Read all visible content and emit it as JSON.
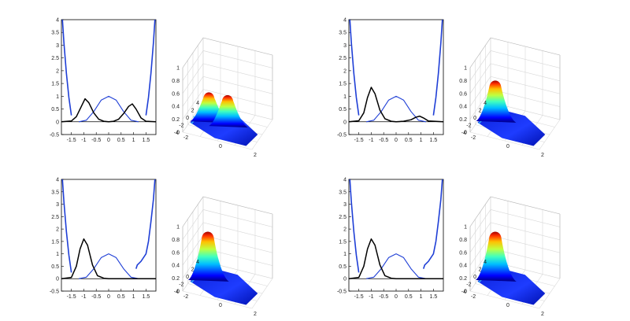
{
  "chart_data": [
    {
      "type": "line",
      "panel": "top-left-curves",
      "xlim": [
        -1.9,
        1.9
      ],
      "ylim": [
        -0.5,
        4
      ],
      "xticks": [
        "-1.5",
        "-1",
        "-0.5",
        "0",
        "0.5",
        "1",
        "1.5"
      ],
      "yticks": [
        "-0.5",
        "0",
        "0.5",
        "1",
        "1.5",
        "2",
        "2.5",
        "3",
        "3.5",
        "4"
      ],
      "series": [
        {
          "color": "#1f3fd6",
          "role": "potential",
          "x": [
            -1.86,
            -1.8,
            -1.7,
            -1.6,
            -1.5,
            1.5,
            1.6,
            1.7,
            1.8,
            1.86
          ],
          "y": [
            4,
            3.1,
            1.9,
            0.95,
            0.25,
            0.25,
            0.95,
            1.9,
            3.1,
            4
          ]
        },
        {
          "color": "#1f3fd6",
          "role": "gaussian",
          "x": [
            -1.2,
            -0.9,
            -0.6,
            -0.3,
            0,
            0.3,
            0.6,
            0.9,
            1.2
          ],
          "y": [
            0,
            0.06,
            0.4,
            0.85,
            1.0,
            0.85,
            0.4,
            0.06,
            0
          ]
        },
        {
          "color": "#000000",
          "role": "state",
          "x": [
            -1.9,
            -1.5,
            -1.3,
            -1.1,
            -0.95,
            -0.8,
            -0.6,
            -0.4,
            -0.2,
            0,
            0.2,
            0.4,
            0.6,
            0.8,
            0.95,
            1.1,
            1.3,
            1.5,
            1.9
          ],
          "y": [
            0,
            0.03,
            0.2,
            0.6,
            0.9,
            0.75,
            0.35,
            0.1,
            0.02,
            0,
            0.02,
            0.1,
            0.32,
            0.6,
            0.7,
            0.5,
            0.15,
            0.02,
            0
          ]
        }
      ]
    },
    {
      "type": "surface",
      "panel": "top-left-surface",
      "zticks": [
        "0",
        "0.2",
        "0.4",
        "0.6",
        "0.8",
        "1"
      ],
      "xticks": [
        "-2",
        "0",
        "2"
      ],
      "yticks": [
        "4",
        "2",
        "0",
        "-2",
        "-4"
      ],
      "peaks": [
        {
          "x": -0.9,
          "y": 0,
          "z": 0.45
        },
        {
          "x": 0.9,
          "y": 0,
          "z": 0.48
        }
      ]
    },
    {
      "type": "line",
      "panel": "top-right-curves",
      "xlim": [
        -1.9,
        1.9
      ],
      "ylim": [
        -0.5,
        4
      ],
      "xticks": [
        "-1.5",
        "-1",
        "-0.5",
        "0",
        "0.5",
        "1",
        "1.5"
      ],
      "yticks": [
        "-0.5",
        "0",
        "0.5",
        "1",
        "1.5",
        "2",
        "2.5",
        "3",
        "3.5",
        "4"
      ],
      "series": [
        {
          "color": "#1f3fd6",
          "role": "potential",
          "x": [
            -1.86,
            -1.8,
            -1.7,
            -1.6,
            -1.5,
            1.5,
            1.6,
            1.7,
            1.8,
            1.86
          ],
          "y": [
            4,
            3.1,
            1.9,
            0.95,
            0.25,
            0.25,
            0.95,
            1.9,
            3.1,
            4
          ]
        },
        {
          "color": "#1f3fd6",
          "role": "gaussian",
          "x": [
            -1.2,
            -0.9,
            -0.6,
            -0.3,
            0,
            0.3,
            0.6,
            0.9,
            1.2
          ],
          "y": [
            0,
            0.06,
            0.4,
            0.85,
            1.0,
            0.85,
            0.4,
            0.06,
            0
          ]
        },
        {
          "color": "#000000",
          "role": "state",
          "x": [
            -1.9,
            -1.5,
            -1.3,
            -1.15,
            -1.0,
            -0.85,
            -0.65,
            -0.45,
            -0.2,
            0,
            0.3,
            0.6,
            0.8,
            0.95,
            1.1,
            1.3,
            1.9
          ],
          "y": [
            0,
            0.04,
            0.35,
            0.95,
            1.35,
            1.1,
            0.45,
            0.12,
            0.02,
            0,
            0.02,
            0.08,
            0.18,
            0.22,
            0.15,
            0.03,
            0
          ]
        }
      ]
    },
    {
      "type": "surface",
      "panel": "top-right-surface",
      "zticks": [
        "0",
        "0.2",
        "0.4",
        "0.6",
        "0.8",
        "1"
      ],
      "xticks": [
        "-2",
        "0",
        "2"
      ],
      "yticks": [
        "4",
        "2",
        "0",
        "-2",
        "-4"
      ],
      "peaks": [
        {
          "x": -1.0,
          "y": 0,
          "z": 0.63
        }
      ]
    },
    {
      "type": "line",
      "panel": "bottom-left-curves",
      "xlim": [
        -1.9,
        1.9
      ],
      "ylim": [
        -0.5,
        4
      ],
      "xticks": [
        "-1.5",
        "-1",
        "-0.5",
        "0",
        "0.5",
        "1",
        "1.5"
      ],
      "yticks": [
        "-0.5",
        "0",
        "0.5",
        "1",
        "1.5",
        "2",
        "2.5",
        "3",
        "3.5",
        "4"
      ],
      "series": [
        {
          "color": "#1f3fd6",
          "role": "potential",
          "x": [
            -1.86,
            -1.8,
            -1.7,
            -1.6,
            -1.5,
            1.1,
            1.15,
            1.3,
            1.5,
            1.6,
            1.7,
            1.8,
            1.86
          ],
          "y": [
            4,
            3.1,
            1.9,
            0.95,
            0.25,
            0.4,
            0.55,
            0.7,
            1.0,
            1.5,
            2.3,
            3.2,
            4
          ]
        },
        {
          "color": "#1f3fd6",
          "role": "gaussian",
          "x": [
            -1.2,
            -0.9,
            -0.6,
            -0.3,
            0,
            0.3,
            0.6,
            0.9,
            1.2
          ],
          "y": [
            0,
            0.06,
            0.4,
            0.85,
            1.0,
            0.85,
            0.4,
            0.06,
            0
          ]
        },
        {
          "color": "#000000",
          "role": "state",
          "x": [
            -1.9,
            -1.5,
            -1.3,
            -1.15,
            -1.0,
            -0.85,
            -0.65,
            -0.45,
            -0.2,
            0,
            0.5,
            1.0,
            1.9
          ],
          "y": [
            0,
            0.05,
            0.5,
            1.2,
            1.6,
            1.35,
            0.55,
            0.12,
            0.02,
            0,
            0,
            0,
            0
          ]
        }
      ]
    },
    {
      "type": "surface",
      "panel": "bottom-left-surface",
      "zticks": [
        "0",
        "0.2",
        "0.4",
        "0.6",
        "0.8",
        "1"
      ],
      "xticks": [
        "-2",
        "0",
        "2"
      ],
      "yticks": [
        "4",
        "2",
        "0",
        "-2",
        "-4"
      ],
      "peaks": [
        {
          "x": -1.0,
          "y": 0,
          "z": 0.75
        }
      ]
    },
    {
      "type": "line",
      "panel": "bottom-right-curves",
      "xlim": [
        -1.9,
        1.9
      ],
      "ylim": [
        -0.5,
        4
      ],
      "xticks": [
        "-1.5",
        "-1",
        "-0.5",
        "0",
        "0.5",
        "1",
        "1.5"
      ],
      "yticks": [
        "-0.5",
        "0",
        "0.5",
        "1",
        "1.5",
        "2",
        "2.5",
        "3",
        "3.5",
        "4"
      ],
      "series": [
        {
          "color": "#1f3fd6",
          "role": "potential",
          "x": [
            -1.86,
            -1.8,
            -1.7,
            -1.6,
            -1.5,
            1.1,
            1.15,
            1.3,
            1.5,
            1.6,
            1.7,
            1.8,
            1.86
          ],
          "y": [
            4,
            3.1,
            1.9,
            0.95,
            0.25,
            0.4,
            0.55,
            0.7,
            1.0,
            1.5,
            2.3,
            3.2,
            4
          ]
        },
        {
          "color": "#1f3fd6",
          "role": "gaussian",
          "x": [
            -1.2,
            -0.9,
            -0.6,
            -0.3,
            0,
            0.3,
            0.6,
            0.9,
            1.2
          ],
          "y": [
            0,
            0.06,
            0.4,
            0.85,
            1.0,
            0.85,
            0.4,
            0.06,
            0
          ]
        },
        {
          "color": "#000000",
          "role": "state",
          "x": [
            -1.9,
            -1.5,
            -1.3,
            -1.15,
            -1.0,
            -0.85,
            -0.65,
            -0.45,
            -0.2,
            0,
            0.5,
            1.0,
            1.9
          ],
          "y": [
            0,
            0.05,
            0.5,
            1.2,
            1.6,
            1.35,
            0.55,
            0.12,
            0.02,
            0,
            0,
            0,
            0
          ]
        }
      ]
    },
    {
      "type": "surface",
      "panel": "bottom-right-surface",
      "zticks": [
        "0",
        "0.2",
        "0.4",
        "0.6",
        "0.8",
        "1"
      ],
      "xticks": [
        "-2",
        "0",
        "2"
      ],
      "yticks": [
        "4",
        "2",
        "0",
        "-2",
        "-4"
      ],
      "peaks": [
        {
          "x": -1.0,
          "y": 0,
          "z": 0.75
        }
      ]
    }
  ]
}
